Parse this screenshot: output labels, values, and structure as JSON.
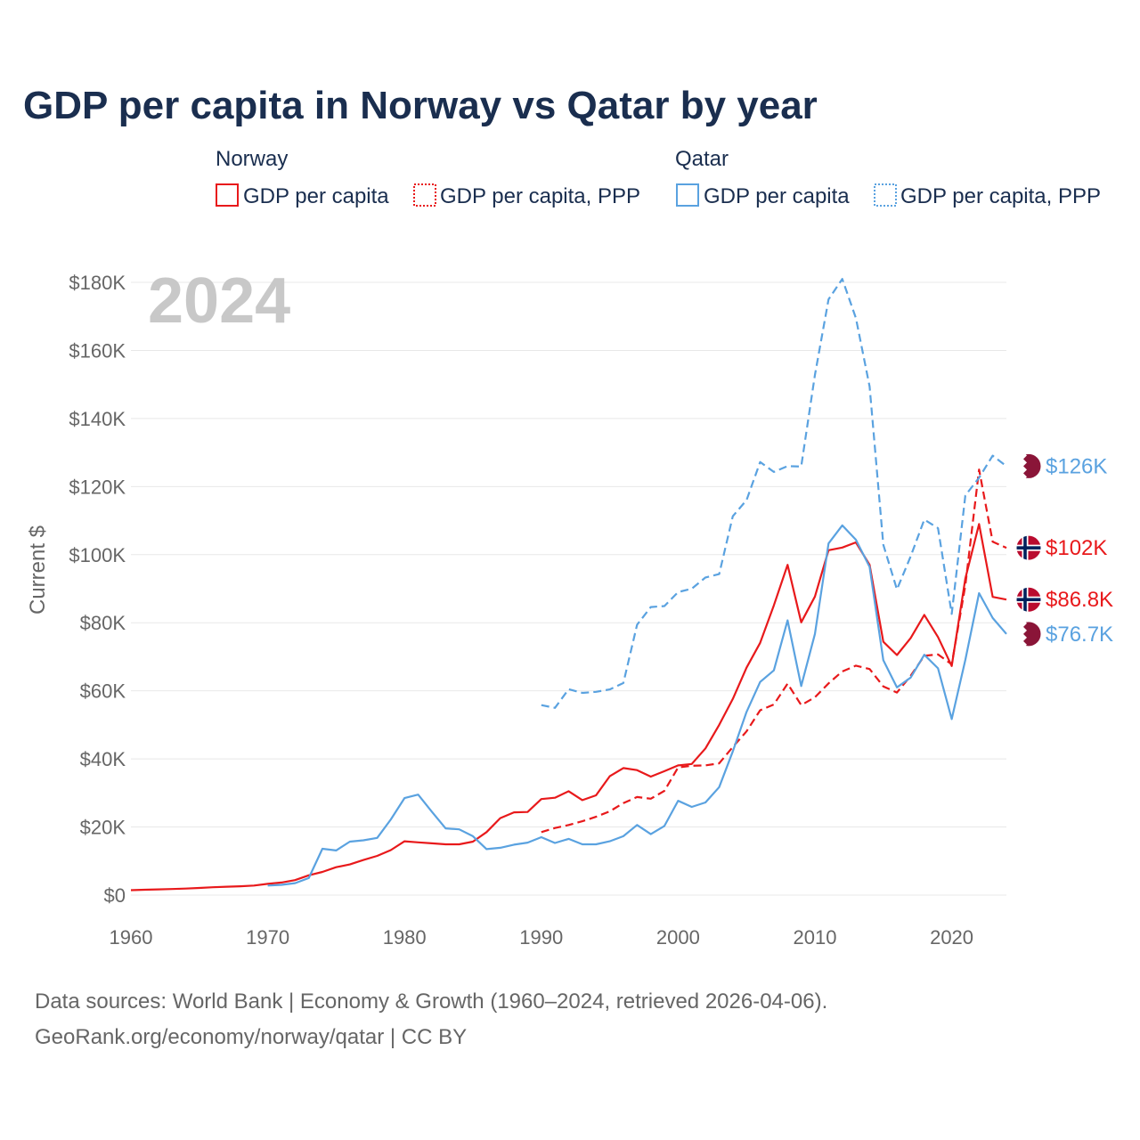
{
  "title": "GDP per capita in Norway vs Qatar by year",
  "year_watermark": "2024",
  "legend": {
    "norway_group": "Norway",
    "qatar_group": "Qatar",
    "norway_gdp": "GDP per capita",
    "norway_ppp": "GDP per capita, PPP",
    "qatar_gdp": "GDP per capita",
    "qatar_ppp": "GDP per capita, PPP"
  },
  "source_line1": "Data sources: World Bank | Economy & Growth (1960–2024, retrieved 2026-04-06).",
  "source_line2": "GeoRank.org/economy/norway/qatar | CC BY",
  "colors": {
    "norway": "#e8191b",
    "qatar": "#5aa2e0",
    "grid": "#e8e8e8",
    "axis_text": "#666666",
    "title": "#1a2e4f"
  },
  "icons": {
    "norway_flag": "norway-flag-icon",
    "qatar_flag": "qatar-flag-icon"
  },
  "chart_data": {
    "type": "line",
    "title": "GDP per capita in Norway vs Qatar by year",
    "xlabel": "",
    "ylabel": "Current $",
    "xlim": [
      1960,
      2024
    ],
    "ylim": [
      0,
      180000
    ],
    "x_ticks": [
      1960,
      1970,
      1980,
      1990,
      2000,
      2010,
      2020
    ],
    "x_tick_labels": [
      "1960",
      "1970",
      "1980",
      "1990",
      "2000",
      "2010",
      "2020"
    ],
    "y_ticks": [
      0,
      20000,
      40000,
      60000,
      80000,
      100000,
      120000,
      140000,
      160000,
      180000
    ],
    "y_tick_labels": [
      "$0",
      "$20K",
      "$40K",
      "$60K",
      "$80K",
      "$100K",
      "$120K",
      "$140K",
      "$160K",
      "$180K"
    ],
    "grid": true,
    "legend_position": "top",
    "series": [
      {
        "name": "Norway GDP per capita",
        "country": "Norway",
        "style": "solid",
        "end_label": "$86.8K",
        "x": [
          1960,
          1961,
          1962,
          1963,
          1964,
          1965,
          1966,
          1967,
          1968,
          1969,
          1970,
          1971,
          1972,
          1973,
          1974,
          1975,
          1976,
          1977,
          1978,
          1979,
          1980,
          1981,
          1982,
          1983,
          1984,
          1985,
          1986,
          1987,
          1988,
          1989,
          1990,
          1991,
          1992,
          1993,
          1994,
          1995,
          1996,
          1997,
          1998,
          1999,
          2000,
          2001,
          2002,
          2003,
          2004,
          2005,
          2006,
          2007,
          2008,
          2009,
          2010,
          2011,
          2012,
          2013,
          2014,
          2015,
          2016,
          2017,
          2018,
          2019,
          2020,
          2021,
          2022,
          2023,
          2024
        ],
        "values": [
          1450,
          1560,
          1670,
          1780,
          1900,
          2100,
          2300,
          2450,
          2600,
          2800,
          3300,
          3700,
          4400,
          5800,
          6800,
          8200,
          9000,
          10300,
          11500,
          13200,
          15800,
          15500,
          15200,
          14900,
          14900,
          15700,
          18500,
          22600,
          24300,
          24400,
          28200,
          28600,
          30500,
          27900,
          29300,
          34900,
          37300,
          36700,
          34800,
          36400,
          38100,
          38500,
          43100,
          50000,
          57600,
          66800,
          74100,
          85100,
          97000,
          80100,
          87700,
          101300,
          102100,
          103600,
          97000,
          74400,
          70500,
          75500,
          82300,
          75800,
          67300,
          93000,
          109000,
          87600,
          86800
        ]
      },
      {
        "name": "Norway GDP per capita, PPP",
        "country": "Norway",
        "style": "dashed",
        "end_label": "$102K",
        "x": [
          1990,
          1991,
          1992,
          1993,
          1994,
          1995,
          1996,
          1997,
          1998,
          1999,
          2000,
          2001,
          2002,
          2003,
          2004,
          2005,
          2006,
          2007,
          2008,
          2009,
          2010,
          2011,
          2012,
          2013,
          2014,
          2015,
          2016,
          2017,
          2018,
          2019,
          2020,
          2021,
          2022,
          2023,
          2024
        ],
        "values": [
          18500,
          19700,
          20600,
          21700,
          23000,
          24600,
          27000,
          28800,
          28300,
          30600,
          37500,
          38000,
          38100,
          38700,
          43500,
          48100,
          54300,
          56000,
          62100,
          55800,
          58100,
          62200,
          65700,
          67400,
          66400,
          61300,
          59500,
          64400,
          70300,
          70700,
          67800,
          91000,
          125000,
          103800,
          102000
        ]
      },
      {
        "name": "Qatar GDP per capita",
        "country": "Qatar",
        "style": "solid",
        "end_label": "$76.7K",
        "x": [
          1970,
          1971,
          1972,
          1973,
          1974,
          1975,
          1976,
          1977,
          1978,
          1979,
          1980,
          1981,
          1982,
          1983,
          1984,
          1985,
          1986,
          1987,
          1988,
          1989,
          1990,
          1991,
          1992,
          1993,
          1994,
          1995,
          1996,
          1997,
          1998,
          1999,
          2000,
          2001,
          2002,
          2003,
          2004,
          2005,
          2006,
          2007,
          2008,
          2009,
          2010,
          2011,
          2012,
          2013,
          2014,
          2015,
          2016,
          2017,
          2018,
          2019,
          2020,
          2021,
          2022,
          2023,
          2024
        ],
        "values": [
          2800,
          3000,
          3500,
          5000,
          13600,
          13100,
          15700,
          16100,
          16800,
          22200,
          28500,
          29500,
          24500,
          19600,
          19300,
          17300,
          13500,
          13900,
          14800,
          15400,
          17000,
          15300,
          16500,
          14900,
          14900,
          15800,
          17300,
          20600,
          17900,
          20300,
          27700,
          25900,
          27200,
          31700,
          42200,
          53800,
          62600,
          66000,
          80700,
          61400,
          76700,
          103300,
          108600,
          104400,
          96400,
          69000,
          61000,
          63900,
          70600,
          66600,
          51700,
          69100,
          88700,
          81400,
          76700
        ]
      },
      {
        "name": "Qatar GDP per capita, PPP",
        "country": "Qatar",
        "style": "dashed",
        "end_label": "$126K",
        "x": [
          1990,
          1991,
          1992,
          1993,
          1994,
          1995,
          1996,
          1997,
          1998,
          1999,
          2000,
          2001,
          2002,
          2003,
          2004,
          2005,
          2006,
          2007,
          2008,
          2009,
          2010,
          2011,
          2012,
          2013,
          2014,
          2015,
          2016,
          2017,
          2018,
          2019,
          2020,
          2021,
          2022,
          2023,
          2024
        ],
        "values": [
          55800,
          55000,
          60500,
          59400,
          59700,
          60400,
          62300,
          79400,
          84600,
          84900,
          89000,
          90000,
          93300,
          94300,
          111300,
          116000,
          127200,
          124300,
          126000,
          125900,
          152800,
          175000,
          181000,
          169500,
          149400,
          102900,
          89800,
          99500,
          110300,
          107800,
          82600,
          117400,
          122600,
          129100,
          126000
        ]
      }
    ]
  }
}
